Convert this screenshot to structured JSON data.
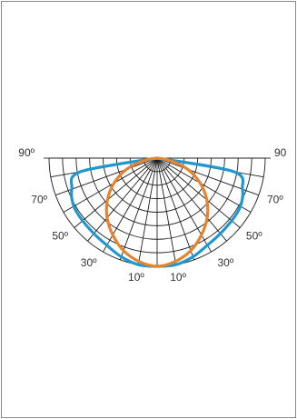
{
  "chart_data": {
    "type": "polar",
    "subtype": "luminous-intensity-distribution",
    "title": "",
    "angle_range_deg": [
      -90,
      90
    ],
    "angle_grid_step_deg": 10,
    "radial_rings": 8,
    "angle_tick_labels": [
      {
        "angle": -90,
        "text": "90º"
      },
      {
        "angle": -70,
        "text": "70º"
      },
      {
        "angle": -50,
        "text": "50º"
      },
      {
        "angle": -30,
        "text": "30º"
      },
      {
        "angle": -10,
        "text": "10º"
      },
      {
        "angle": 10,
        "text": "10º"
      },
      {
        "angle": 30,
        "text": "30º"
      },
      {
        "angle": 50,
        "text": "50º"
      },
      {
        "angle": 70,
        "text": "70º"
      },
      {
        "angle": 90,
        "text": "90"
      }
    ],
    "series": [
      {
        "color": "#1f98cf",
        "angles": [
          -90,
          -80,
          -70,
          -60,
          -50,
          -40,
          -30,
          -20,
          -10,
          0,
          10,
          20,
          30,
          40,
          50,
          60,
          70,
          80,
          90
        ],
        "values": [
          0.0,
          0.72,
          0.84,
          0.89,
          0.9,
          0.91,
          0.93,
          0.97,
          1.0,
          1.0,
          1.0,
          0.97,
          0.93,
          0.91,
          0.9,
          0.89,
          0.84,
          0.72,
          0.0
        ]
      },
      {
        "color": "#e58430",
        "angles": [
          -90,
          -80,
          -70,
          -60,
          -50,
          -40,
          -30,
          -20,
          -10,
          0,
          10,
          20,
          30,
          40,
          50,
          60,
          70,
          80,
          90
        ],
        "values": [
          0.0,
          0.12,
          0.3,
          0.46,
          0.6,
          0.72,
          0.82,
          0.91,
          0.97,
          1.0,
          0.97,
          0.91,
          0.82,
          0.72,
          0.6,
          0.46,
          0.3,
          0.12,
          0.0
        ]
      }
    ]
  }
}
